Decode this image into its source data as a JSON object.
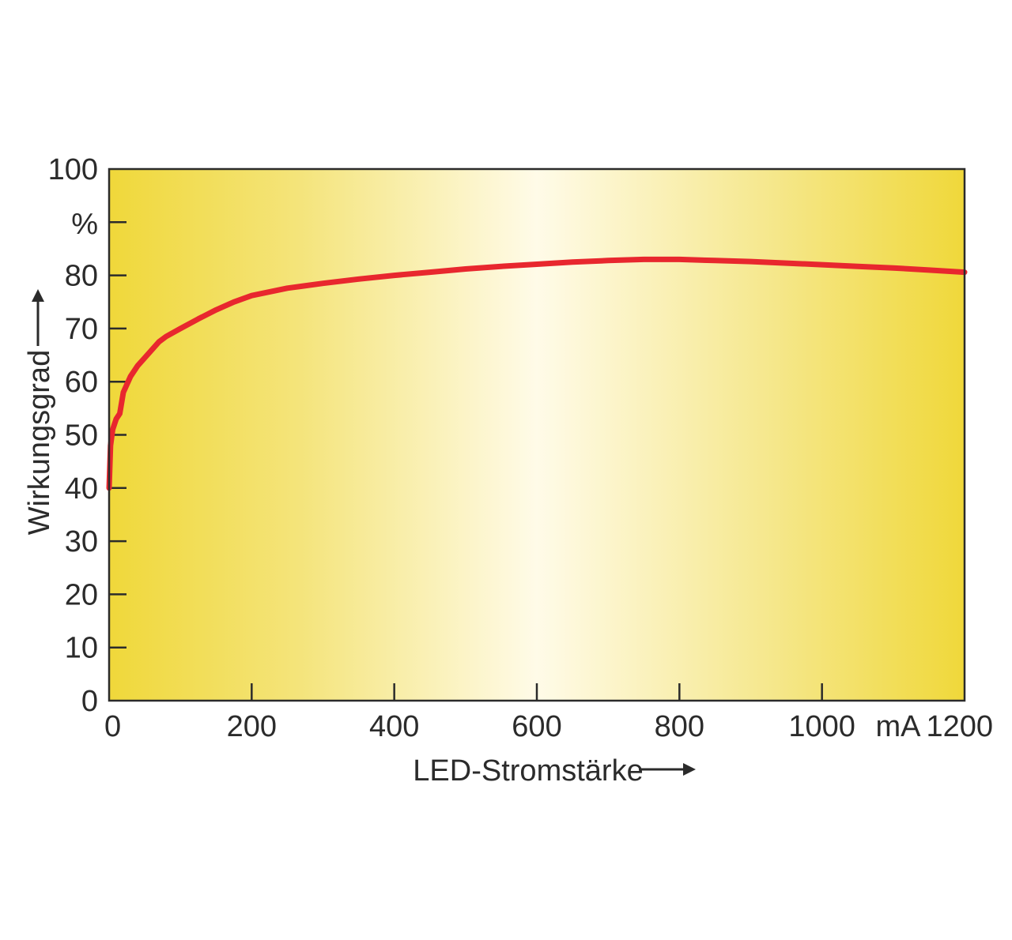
{
  "chart_data": {
    "type": "line",
    "title": "",
    "xlabel": "LED-Stromstärke",
    "ylabel": "Wirkungsgrad",
    "x_unit": "mA",
    "y_unit": "%",
    "xlim": [
      0,
      1200
    ],
    "ylim": [
      0,
      100
    ],
    "x_ticks": [
      0,
      200,
      400,
      600,
      800,
      1000,
      1200
    ],
    "y_ticks": [
      0,
      10,
      20,
      30,
      40,
      50,
      60,
      70,
      80,
      90,
      100
    ],
    "x_tick_labels": [
      "0",
      "200",
      "400",
      "600",
      "800",
      "1000",
      "1200"
    ],
    "y_tick_labels": [
      "0",
      "10",
      "20",
      "30",
      "40",
      "50",
      "60",
      "70",
      "80",
      "",
      "100"
    ],
    "grid": false,
    "legend": "none",
    "colors": {
      "line": "#e8272e",
      "background_edge": "#f2dc3c",
      "background_center": "#fffbe8",
      "axis": "#2b2b2b"
    },
    "series": [
      {
        "x": [
          0,
          2,
          5,
          10,
          15,
          20,
          30,
          40,
          50,
          60,
          70,
          80,
          100,
          125,
          150,
          175,
          200,
          250,
          300,
          350,
          400,
          450,
          500,
          550,
          600,
          650,
          700,
          750,
          800,
          850,
          900,
          950,
          1000,
          1050,
          1100,
          1150,
          1200
        ],
        "y": [
          40,
          48,
          51,
          53,
          54,
          58,
          61,
          63,
          64.5,
          66,
          67.5,
          68.5,
          70,
          71.8,
          73.5,
          75,
          76.2,
          77.6,
          78.5,
          79.3,
          80,
          80.6,
          81.2,
          81.7,
          82.1,
          82.5,
          82.8,
          83.0,
          83.0,
          82.8,
          82.6,
          82.3,
          82.0,
          81.7,
          81.4,
          81.0,
          80.6
        ]
      }
    ]
  }
}
